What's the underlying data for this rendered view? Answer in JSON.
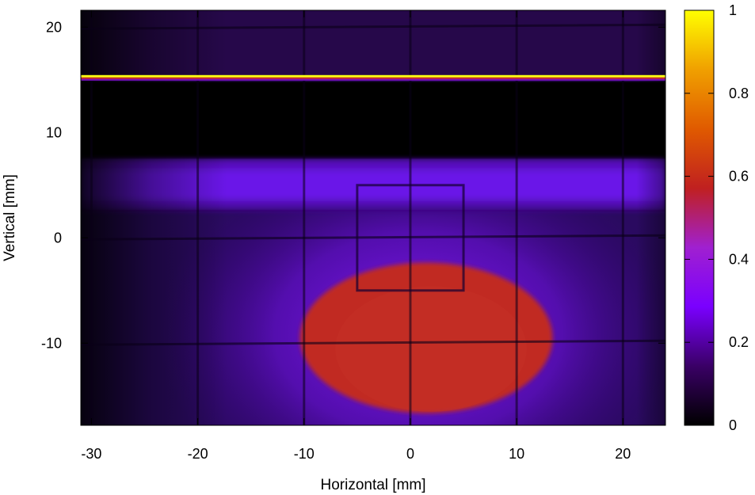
{
  "chart_data": {
    "type": "heatmap",
    "xlabel": "Horizontal [mm]",
    "ylabel": "Vertical [mm]",
    "xlim": [
      -31,
      24
    ],
    "ylim": [
      -17.8,
      21.6
    ],
    "xticks": [
      -30,
      -20,
      -10,
      0,
      10,
      20
    ],
    "yticks": [
      -10,
      0,
      10,
      20
    ],
    "colorbar": {
      "range": [
        0,
        1
      ],
      "ticks": [
        0,
        0.2,
        0.4,
        0.6,
        0.8,
        1
      ],
      "tick_labels": [
        "0",
        "0.2",
        "0.4",
        "0.6",
        "0.8",
        "1"
      ],
      "colormap": [
        "#000000",
        "#3a0066",
        "#7a00ff",
        "#a020d0",
        "#c02020",
        "#e05a00",
        "#f0a000",
        "#ffff00"
      ]
    },
    "features": {
      "central_spot": {
        "center": [
          1.5,
          -9.5
        ],
        "radius_x": 12.5,
        "radius_y": 7.0,
        "value": 0.55
      },
      "upper_band": {
        "y_range": [
          2.5,
          7.5
        ],
        "value": 0.22
      },
      "dark_band": {
        "y_range": [
          7.5,
          14.8
        ],
        "value": 0.0
      },
      "bright_line": {
        "y": 15.3,
        "value": 1.0
      },
      "square_outline": {
        "x_range": [
          -5,
          5
        ],
        "y_range": [
          -5,
          5
        ]
      },
      "grid_lines_x": [
        -30,
        -20,
        -10,
        0,
        10,
        20
      ],
      "grid_lines_y": [
        -10,
        0,
        20
      ]
    }
  }
}
